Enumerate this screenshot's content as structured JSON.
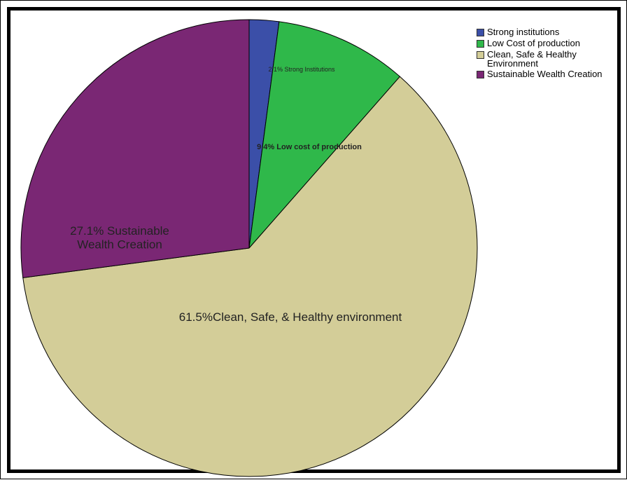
{
  "chart_data": {
    "type": "pie",
    "title": "",
    "start_angle_deg": 0,
    "direction": "clockwise",
    "slices": [
      {
        "name": "Strong institutions",
        "legend_label": "Strong institutions",
        "value": 2.1,
        "label": "2.1% Strong Institutions",
        "color": "#3b4fa8"
      },
      {
        "name": "Low Cost of production",
        "legend_label": "Low Cost of production",
        "value": 9.4,
        "label": "9.4% Low cost of production",
        "color": "#2fb84a"
      },
      {
        "name": "Clean, Safe & Healthy Environment",
        "legend_label": "Clean, Safe & Healthy\nEnvironment",
        "value": 61.5,
        "label": "61.5%Clean, Safe, & Healthy environment",
        "color": "#d3cd98"
      },
      {
        "name": "Sustainable Wealth Creation",
        "legend_label": "Sustainable Wealth Creation",
        "value": 27.1,
        "label": "27.1% Sustainable\nWealth Creation",
        "color": "#7a2774"
      }
    ],
    "legend": {
      "placement": "top-right"
    }
  }
}
